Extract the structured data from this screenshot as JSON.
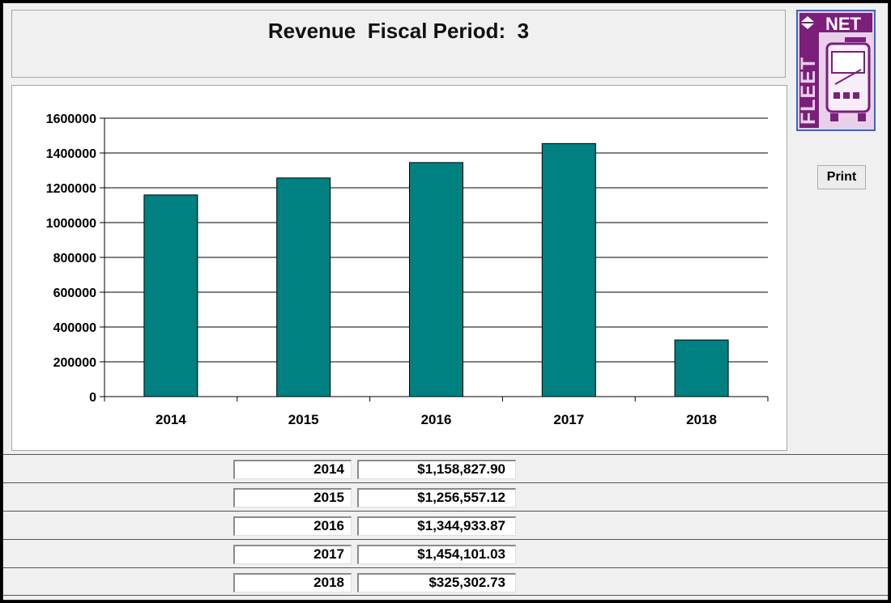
{
  "header": {
    "title": "Revenue  Fiscal Period:  3"
  },
  "logo": {
    "text_vertical": "FLEET",
    "text_horizontal": "NET",
    "color_primary": "#7b1f7b",
    "color_bg": "#e8d0ea"
  },
  "toolbar": {
    "print_label": "Print"
  },
  "chart_data": {
    "type": "bar",
    "categories": [
      "2014",
      "2015",
      "2016",
      "2017",
      "2018"
    ],
    "values": [
      1158827.9,
      1256557.12,
      1344933.87,
      1454101.03,
      325302.73
    ],
    "ylim": [
      0,
      1600000
    ],
    "yticks": [
      "0",
      "200000",
      "400000",
      "600000",
      "800000",
      "1000000",
      "1200000",
      "1400000",
      "1600000"
    ],
    "grid": true,
    "bar_color": "#008080",
    "legend": "none"
  },
  "table": {
    "rows": [
      {
        "year": "2014",
        "amount": "$1,158,827.90"
      },
      {
        "year": "2015",
        "amount": "$1,256,557.12"
      },
      {
        "year": "2016",
        "amount": "$1,344,933.87"
      },
      {
        "year": "2017",
        "amount": "$1,454,101.03"
      },
      {
        "year": "2018",
        "amount": "$325,302.73"
      }
    ]
  }
}
